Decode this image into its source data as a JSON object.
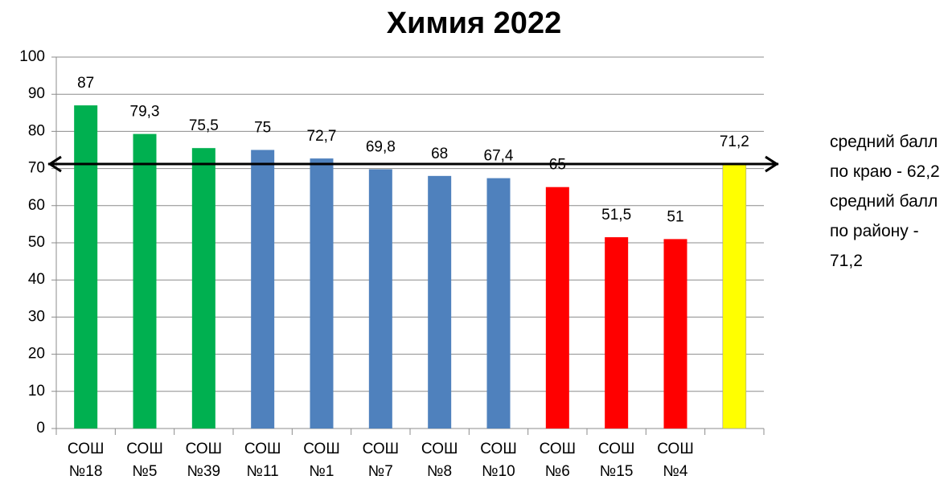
{
  "chart_data": {
    "type": "bar",
    "title": "Химия 2022",
    "categories": [
      "СОШ №18",
      "СОШ №5",
      "СОШ №39",
      "СОШ №11",
      "СОШ №1",
      "СОШ №7",
      "СОШ №8",
      "СОШ №10",
      "СОШ №6",
      "СОШ №15",
      "СОШ №4",
      null
    ],
    "values": [
      87,
      79.3,
      75.5,
      75,
      72.7,
      69.8,
      68,
      67.4,
      65,
      51.5,
      51,
      71.2
    ],
    "value_labels": [
      "87",
      "79,3",
      "75,5",
      "75",
      "72,7",
      "69,8",
      "68",
      "67,4",
      "65",
      "51,5",
      "51",
      "71,2"
    ],
    "colors": [
      "#00b050",
      "#00b050",
      "#00b050",
      "#4f81bd",
      "#4f81bd",
      "#4f81bd",
      "#4f81bd",
      "#4f81bd",
      "#ff0000",
      "#ff0000",
      "#ff0000",
      "#ffff00"
    ],
    "ylim": [
      0,
      100
    ],
    "yticks": [
      0,
      10,
      20,
      30,
      40,
      50,
      60,
      70,
      80,
      90,
      100
    ],
    "grid": true,
    "average_line": 71.2,
    "annotation": "средний балл по краю - 62,2 средний балл по району - 71,2"
  }
}
